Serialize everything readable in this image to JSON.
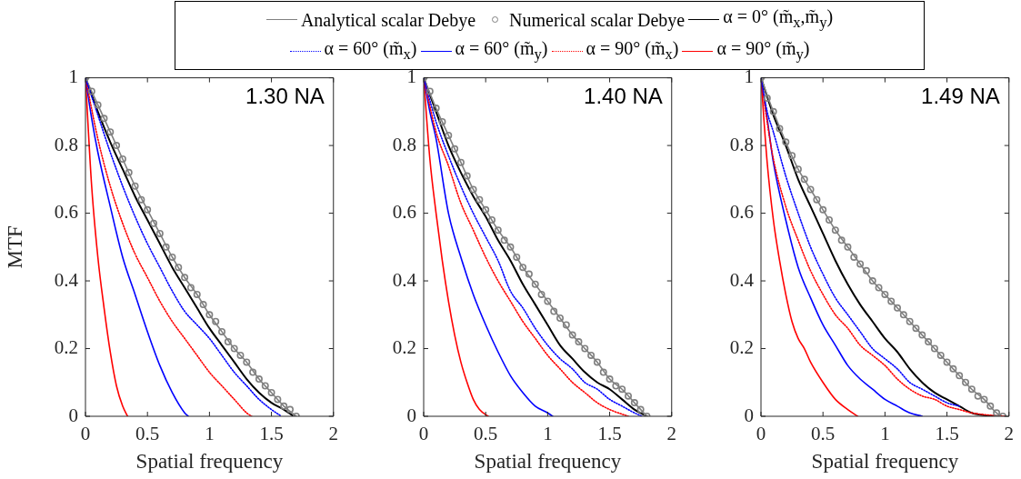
{
  "chart_data": [
    {
      "type": "line",
      "annotations": [
        "1.30 NA"
      ],
      "xlabel": "Spatial frequency",
      "ylabel": "MTF",
      "xlim": [
        0,
        2
      ],
      "xticks": [
        0,
        0.5,
        1,
        1.5,
        2
      ],
      "ylim": [
        0,
        1
      ],
      "yticks": [
        0,
        0.2,
        0.4,
        0.6,
        0.8,
        1
      ],
      "legend": "top",
      "series": [
        {
          "name": "Analytical scalar Debye",
          "color": "#808080",
          "x": [
            0,
            0.1,
            0.2,
            0.3,
            0.4,
            0.5,
            0.6,
            0.7,
            0.8,
            0.9,
            1,
            1.1,
            1.2,
            1.3,
            1.4,
            1.5,
            1.6,
            1.7
          ],
          "values": [
            1,
            0.92,
            0.84,
            0.76,
            0.68,
            0.61,
            0.54,
            0.47,
            0.41,
            0.36,
            0.3,
            0.25,
            0.2,
            0.16,
            0.11,
            0.07,
            0.03,
            0
          ]
        },
        {
          "name": "Numerical scalar Debye",
          "type": "scatter",
          "marker": "circle",
          "color": "#808080",
          "x": [
            0,
            0.05,
            0.1,
            0.15,
            0.2,
            0.25,
            0.3,
            0.35,
            0.4,
            0.45,
            0.5,
            0.55,
            0.6,
            0.65,
            0.7,
            0.75,
            0.8,
            0.85,
            0.9,
            0.95,
            1,
            1.05,
            1.1,
            1.15,
            1.2,
            1.25,
            1.3,
            1.35,
            1.4,
            1.45,
            1.5,
            1.55,
            1.6,
            1.65,
            1.7
          ],
          "values": [
            1,
            0.96,
            0.92,
            0.88,
            0.84,
            0.8,
            0.76,
            0.72,
            0.68,
            0.64,
            0.61,
            0.57,
            0.54,
            0.5,
            0.47,
            0.44,
            0.41,
            0.38,
            0.36,
            0.33,
            0.3,
            0.28,
            0.25,
            0.22,
            0.2,
            0.18,
            0.16,
            0.13,
            0.11,
            0.09,
            0.07,
            0.05,
            0.03,
            0.02,
            0
          ]
        },
        {
          "name": "α = 0° (m̃$_{x}$,m̃$_{y}$)",
          "color": "#000000",
          "x": [
            0,
            0.1,
            0.2,
            0.3,
            0.4,
            0.5,
            0.6,
            0.7,
            0.8,
            0.9,
            1,
            1.1,
            1.2,
            1.3,
            1.4,
            1.5,
            1.6,
            1.68
          ],
          "values": [
            1,
            0.9,
            0.81,
            0.73,
            0.65,
            0.58,
            0.51,
            0.44,
            0.38,
            0.32,
            0.26,
            0.21,
            0.16,
            0.11,
            0.07,
            0.04,
            0.02,
            0
          ]
        },
        {
          "name": "α = 60° (m̃$_{x}$)",
          "color": "#0000ff",
          "line_style": "dotted",
          "x": [
            0,
            0.1,
            0.2,
            0.3,
            0.4,
            0.5,
            0.6,
            0.7,
            0.8,
            0.9,
            1,
            1.1,
            1.2,
            1.3,
            1.4,
            1.5,
            1.58
          ],
          "values": [
            1,
            0.89,
            0.78,
            0.68,
            0.59,
            0.51,
            0.44,
            0.37,
            0.31,
            0.27,
            0.23,
            0.18,
            0.13,
            0.09,
            0.05,
            0.02,
            0
          ]
        },
        {
          "name": "α = 60° (m̃$_{y}$)",
          "color": "#0000ff",
          "x": [
            0,
            0.05,
            0.1,
            0.2,
            0.3,
            0.4,
            0.5,
            0.6,
            0.7,
            0.8,
            0.83
          ],
          "values": [
            1,
            0.88,
            0.78,
            0.62,
            0.47,
            0.36,
            0.25,
            0.15,
            0.07,
            0.01,
            0
          ]
        },
        {
          "name": "α = 90° (m̃$_{x}$)",
          "color": "#ff0000",
          "line_style": "dotted",
          "x": [
            0,
            0.1,
            0.2,
            0.3,
            0.4,
            0.5,
            0.6,
            0.7,
            0.8,
            0.9,
            1,
            1.1,
            1.2,
            1.3,
            1.34
          ],
          "values": [
            1,
            0.82,
            0.68,
            0.57,
            0.48,
            0.41,
            0.34,
            0.28,
            0.23,
            0.18,
            0.13,
            0.09,
            0.05,
            0.01,
            0
          ]
        },
        {
          "name": "α = 90° (m̃$_{y}$)",
          "color": "#ff0000",
          "x": [
            0,
            0.05,
            0.1,
            0.15,
            0.2,
            0.25,
            0.3,
            0.34
          ],
          "values": [
            1,
            0.68,
            0.47,
            0.32,
            0.19,
            0.09,
            0.03,
            0
          ]
        }
      ]
    },
    {
      "type": "line",
      "annotations": [
        "1.40 NA"
      ],
      "xlabel": "Spatial frequency",
      "xlim": [
        0,
        2
      ],
      "xticks": [
        0,
        0.5,
        1,
        1.5,
        2
      ],
      "ylim": [
        0,
        1
      ],
      "yticks": [
        0,
        0.2,
        0.4,
        0.6,
        0.8,
        1
      ],
      "series": [
        {
          "color": "#808080",
          "x": [
            0,
            0.1,
            0.2,
            0.3,
            0.4,
            0.5,
            0.6,
            0.7,
            0.8,
            0.9,
            1,
            1.1,
            1.2,
            1.3,
            1.4,
            1.5,
            1.6,
            1.7,
            1.8
          ],
          "values": [
            1,
            0.91,
            0.83,
            0.75,
            0.67,
            0.61,
            0.55,
            0.5,
            0.44,
            0.39,
            0.34,
            0.29,
            0.24,
            0.2,
            0.16,
            0.11,
            0.08,
            0.04,
            0
          ]
        },
        {
          "type": "scatter",
          "marker": "circle",
          "color": "#808080",
          "x": [
            0,
            0.05,
            0.1,
            0.15,
            0.2,
            0.25,
            0.3,
            0.35,
            0.4,
            0.45,
            0.5,
            0.55,
            0.6,
            0.65,
            0.7,
            0.75,
            0.8,
            0.85,
            0.9,
            0.95,
            1,
            1.05,
            1.1,
            1.15,
            1.2,
            1.25,
            1.3,
            1.35,
            1.4,
            1.45,
            1.5,
            1.55,
            1.6,
            1.65,
            1.7,
            1.75,
            1.8
          ],
          "values": [
            1,
            0.96,
            0.91,
            0.87,
            0.83,
            0.79,
            0.75,
            0.71,
            0.67,
            0.64,
            0.61,
            0.58,
            0.55,
            0.52,
            0.5,
            0.47,
            0.44,
            0.42,
            0.39,
            0.36,
            0.34,
            0.31,
            0.29,
            0.27,
            0.24,
            0.22,
            0.2,
            0.18,
            0.16,
            0.13,
            0.11,
            0.09,
            0.08,
            0.06,
            0.04,
            0.02,
            0
          ]
        },
        {
          "color": "#000000",
          "x": [
            0,
            0.1,
            0.2,
            0.3,
            0.4,
            0.5,
            0.6,
            0.7,
            0.8,
            0.9,
            1,
            1.1,
            1.2,
            1.3,
            1.4,
            1.5,
            1.6,
            1.7,
            1.8
          ],
          "values": [
            1,
            0.9,
            0.8,
            0.72,
            0.65,
            0.59,
            0.52,
            0.46,
            0.39,
            0.33,
            0.27,
            0.21,
            0.17,
            0.13,
            0.1,
            0.08,
            0.05,
            0.02,
            0
          ]
        },
        {
          "color": "#0000ff",
          "line_style": "dotted",
          "x": [
            0,
            0.1,
            0.2,
            0.3,
            0.4,
            0.5,
            0.6,
            0.7,
            0.8,
            0.9,
            1,
            1.1,
            1.2,
            1.3,
            1.4,
            1.5,
            1.6,
            1.7,
            1.76
          ],
          "values": [
            1,
            0.87,
            0.77,
            0.68,
            0.6,
            0.53,
            0.46,
            0.37,
            0.32,
            0.26,
            0.21,
            0.17,
            0.14,
            0.1,
            0.08,
            0.05,
            0.03,
            0.01,
            0
          ]
        },
        {
          "color": "#0000ff",
          "x": [
            0,
            0.05,
            0.1,
            0.2,
            0.3,
            0.4,
            0.5,
            0.6,
            0.7,
            0.8,
            0.9,
            1,
            1.04
          ],
          "values": [
            1,
            0.9,
            0.82,
            0.6,
            0.47,
            0.36,
            0.27,
            0.19,
            0.12,
            0.07,
            0.03,
            0.01,
            0
          ]
        },
        {
          "color": "#ff0000",
          "line_style": "dotted",
          "x": [
            0,
            0.1,
            0.2,
            0.3,
            0.4,
            0.5,
            0.6,
            0.7,
            0.8,
            0.9,
            1,
            1.1,
            1.2,
            1.3,
            1.4,
            1.5,
            1.65
          ],
          "values": [
            1,
            0.84,
            0.74,
            0.63,
            0.55,
            0.47,
            0.4,
            0.34,
            0.28,
            0.23,
            0.18,
            0.14,
            0.1,
            0.07,
            0.04,
            0.02,
            0
          ]
        },
        {
          "color": "#ff0000",
          "x": [
            0,
            0.05,
            0.1,
            0.15,
            0.2,
            0.25,
            0.3,
            0.35,
            0.4,
            0.45,
            0.52
          ],
          "values": [
            1,
            0.76,
            0.6,
            0.46,
            0.34,
            0.24,
            0.16,
            0.1,
            0.05,
            0.02,
            0
          ]
        }
      ]
    },
    {
      "type": "line",
      "annotations": [
        "1.49 NA"
      ],
      "xlabel": "Spatial frequency",
      "xlim": [
        0,
        2
      ],
      "xticks": [
        0,
        0.5,
        1,
        1.5,
        2
      ],
      "ylim": [
        0,
        1
      ],
      "yticks": [
        0,
        0.2,
        0.4,
        0.6,
        0.8,
        1
      ],
      "series": [
        {
          "color": "#808080",
          "x": [
            0,
            0.1,
            0.2,
            0.3,
            0.4,
            0.5,
            0.6,
            0.7,
            0.8,
            0.9,
            1,
            1.1,
            1.2,
            1.3,
            1.4,
            1.5,
            1.6,
            1.7,
            1.8,
            1.9,
            1.95
          ],
          "values": [
            1,
            0.9,
            0.81,
            0.73,
            0.67,
            0.61,
            0.55,
            0.5,
            0.45,
            0.4,
            0.36,
            0.32,
            0.28,
            0.24,
            0.2,
            0.16,
            0.12,
            0.08,
            0.05,
            0.01,
            0
          ]
        },
        {
          "type": "scatter",
          "marker": "circle",
          "color": "#808080",
          "x": [
            0,
            0.05,
            0.1,
            0.15,
            0.2,
            0.25,
            0.3,
            0.35,
            0.4,
            0.45,
            0.5,
            0.55,
            0.6,
            0.65,
            0.7,
            0.75,
            0.8,
            0.85,
            0.9,
            0.95,
            1,
            1.05,
            1.1,
            1.15,
            1.2,
            1.25,
            1.3,
            1.35,
            1.4,
            1.45,
            1.5,
            1.55,
            1.6,
            1.65,
            1.7,
            1.75,
            1.8,
            1.85,
            1.9,
            1.95
          ],
          "values": [
            1,
            0.94,
            0.9,
            0.85,
            0.81,
            0.77,
            0.73,
            0.7,
            0.67,
            0.64,
            0.61,
            0.58,
            0.55,
            0.52,
            0.5,
            0.47,
            0.45,
            0.43,
            0.4,
            0.38,
            0.36,
            0.34,
            0.32,
            0.3,
            0.28,
            0.26,
            0.24,
            0.22,
            0.2,
            0.18,
            0.16,
            0.14,
            0.12,
            0.1,
            0.08,
            0.06,
            0.05,
            0.03,
            0.01,
            0
          ]
        },
        {
          "color": "#000000",
          "x": [
            0,
            0.1,
            0.2,
            0.3,
            0.4,
            0.5,
            0.6,
            0.7,
            0.8,
            0.9,
            1,
            1.1,
            1.2,
            1.3,
            1.4,
            1.5,
            1.6,
            1.7,
            1.8,
            1.9
          ],
          "values": [
            1,
            0.89,
            0.8,
            0.7,
            0.62,
            0.54,
            0.46,
            0.39,
            0.33,
            0.28,
            0.23,
            0.19,
            0.14,
            0.1,
            0.07,
            0.05,
            0.03,
            0.01,
            0.003,
            0
          ]
        },
        {
          "color": "#0000ff",
          "line_style": "dotted",
          "x": [
            0,
            0.05,
            0.1,
            0.2,
            0.3,
            0.4,
            0.5,
            0.6,
            0.7,
            0.8,
            0.9,
            1,
            1.1,
            1.2,
            1.3,
            1.4,
            1.5,
            1.6
          ],
          "values": [
            1,
            0.9,
            0.84,
            0.71,
            0.6,
            0.5,
            0.42,
            0.35,
            0.3,
            0.25,
            0.2,
            0.17,
            0.14,
            0.1,
            0.08,
            0.06,
            0.04,
            0.03
          ]
        },
        {
          "color": "#0000ff",
          "x": [
            0,
            0.05,
            0.1,
            0.2,
            0.3,
            0.4,
            0.5,
            0.6,
            0.7,
            0.8,
            0.9,
            1,
            1.1,
            1.2,
            1.3
          ],
          "values": [
            1,
            0.88,
            0.75,
            0.58,
            0.44,
            0.35,
            0.27,
            0.21,
            0.15,
            0.11,
            0.08,
            0.05,
            0.03,
            0.01,
            0
          ]
        },
        {
          "color": "#ff0000",
          "line_style": "dotted",
          "x": [
            0,
            0.05,
            0.1,
            0.2,
            0.3,
            0.4,
            0.5,
            0.6,
            0.7,
            0.8,
            0.9,
            1,
            1.1,
            1.2,
            1.3,
            1.4,
            1.5,
            1.6,
            1.7,
            1.8,
            1.97
          ],
          "values": [
            1,
            0.87,
            0.76,
            0.62,
            0.52,
            0.43,
            0.36,
            0.3,
            0.26,
            0.21,
            0.18,
            0.15,
            0.11,
            0.08,
            0.06,
            0.05,
            0.03,
            0.02,
            0.01,
            0.005,
            0
          ]
        },
        {
          "color": "#ff0000",
          "x": [
            0,
            0.05,
            0.1,
            0.15,
            0.2,
            0.25,
            0.3,
            0.35,
            0.4,
            0.5,
            0.6,
            0.7,
            0.78
          ],
          "values": [
            1,
            0.75,
            0.58,
            0.46,
            0.36,
            0.28,
            0.23,
            0.2,
            0.16,
            0.1,
            0.05,
            0.02,
            0
          ]
        }
      ]
    }
  ]
}
